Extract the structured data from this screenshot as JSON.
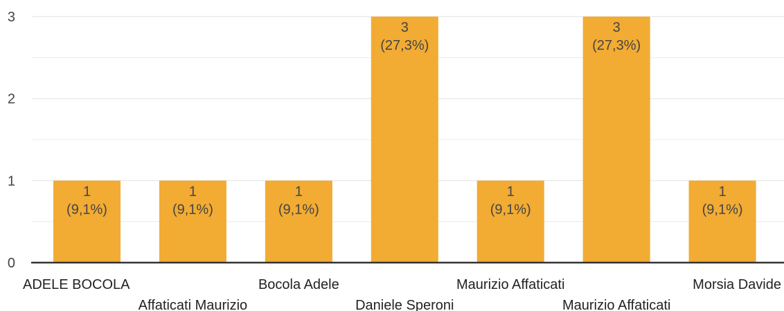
{
  "chart_data": {
    "type": "bar",
    "categories": [
      "ADELE BOCOLA",
      "Affaticati Maurizio",
      "Bocola Adele",
      "Daniele Speroni",
      "Maurizio Affaticati",
      "Maurizio Affaticati",
      "Morsia Davide"
    ],
    "values": [
      1,
      1,
      1,
      3,
      1,
      3,
      1
    ],
    "data_labels": [
      [
        "1",
        "(9,1%)"
      ],
      [
        "1",
        "(9,1%)"
      ],
      [
        "1",
        "(9,1%)"
      ],
      [
        "3",
        "(27,3%)"
      ],
      [
        "1",
        "(9,1%)"
      ],
      [
        "3",
        "(27,3%)"
      ],
      [
        "1",
        "(9,1%)"
      ]
    ],
    "y_ticks": [
      "0",
      "1",
      "2",
      "3"
    ],
    "ylim": [
      0,
      3
    ],
    "grid": true,
    "legend": "none",
    "colors": {
      "bar": "#f2ab33",
      "grid": "#e6e6e6",
      "axis": "#333333"
    }
  }
}
